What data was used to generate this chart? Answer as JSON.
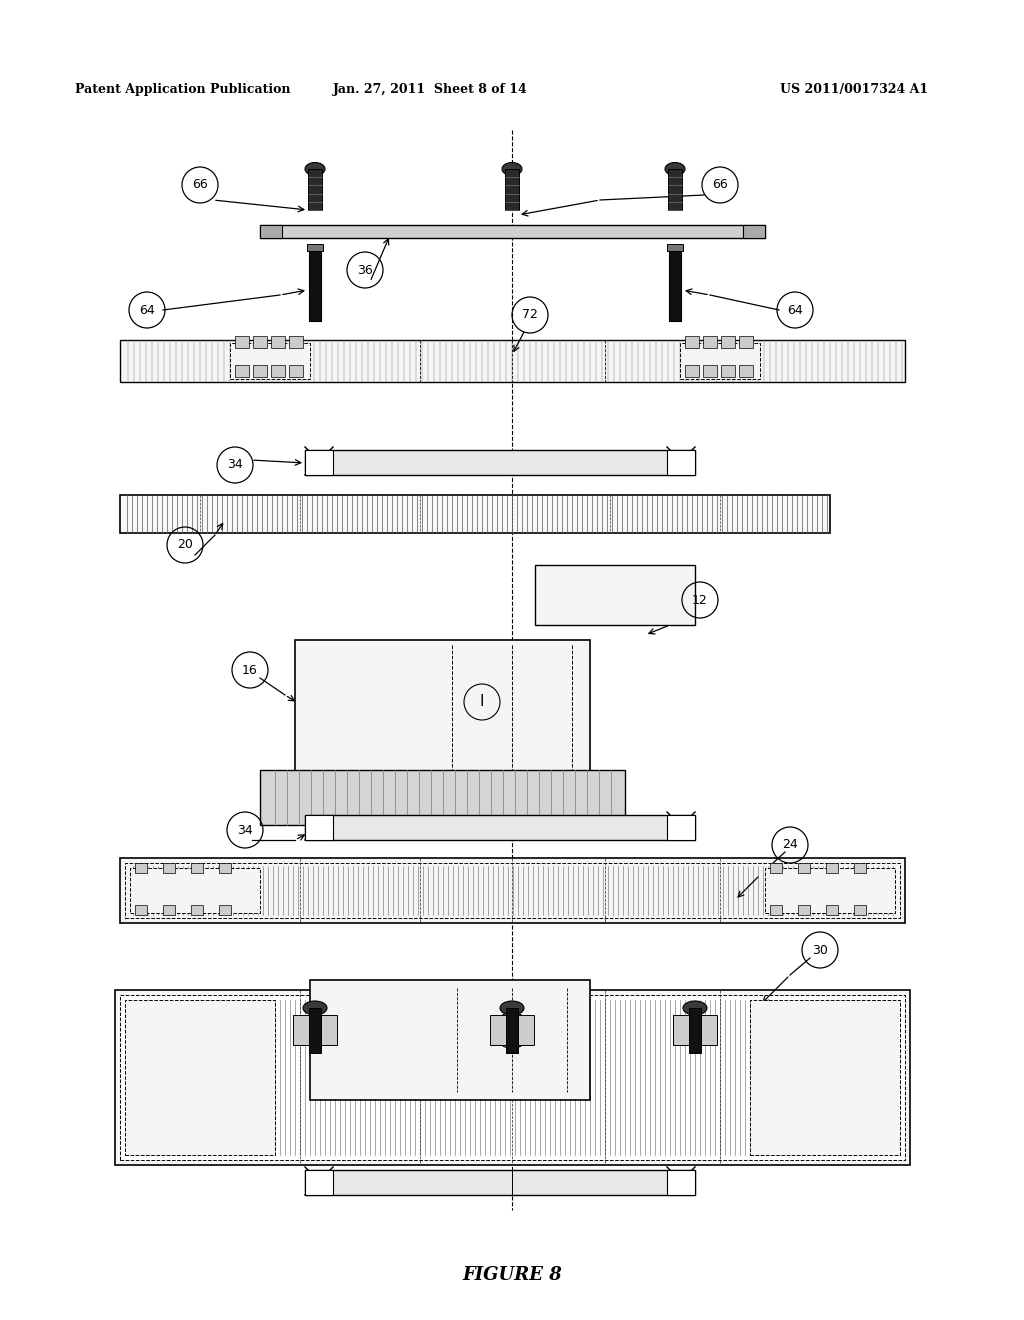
{
  "bg_color": "#ffffff",
  "header_left": "Patent Application Publication",
  "header_mid": "Jan. 27, 2011  Sheet 8 of 14",
  "header_right": "US 2011/0017324 A1",
  "figure_label": "FIGURE 8"
}
